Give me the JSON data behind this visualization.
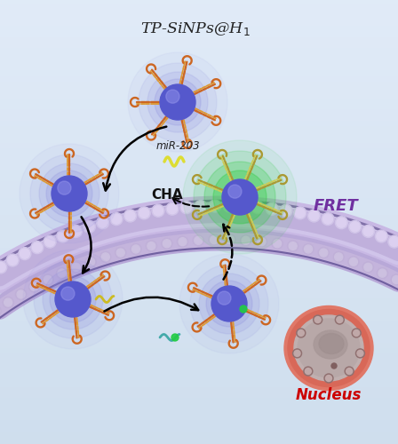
{
  "bg_top": "#daeaf5",
  "bg_bottom": "#b8d4e8",
  "title": "TP-SiNPs@H",
  "title_sub": "1",
  "fret_text": "FRET",
  "fret_color": "#7030a0",
  "nucleus_text": "Nucleus",
  "nucleus_color": "#cc0000",
  "cha_text": "CHA",
  "mirna_text": "miR-203",
  "np_color": "#5558cc",
  "np_blue_glow": "#8888ee",
  "np_green_glow": "#44cc44",
  "arm_color1": "#cc6622",
  "arm_color2": "#cc8833",
  "gold_arm1": "#aa9933",
  "gold_arm2": "#cccc55",
  "mirna_color": "#dddd44",
  "nucleus_outer": "#e88070",
  "nucleus_mid": "#c8b0b0",
  "nucleus_inner": "#b8a8a8",
  "pore_color": "#a08080",
  "membrane_main": "#c0b0dc",
  "membrane_bead": "#d0c4e8",
  "membrane_dark": "#8878a8"
}
